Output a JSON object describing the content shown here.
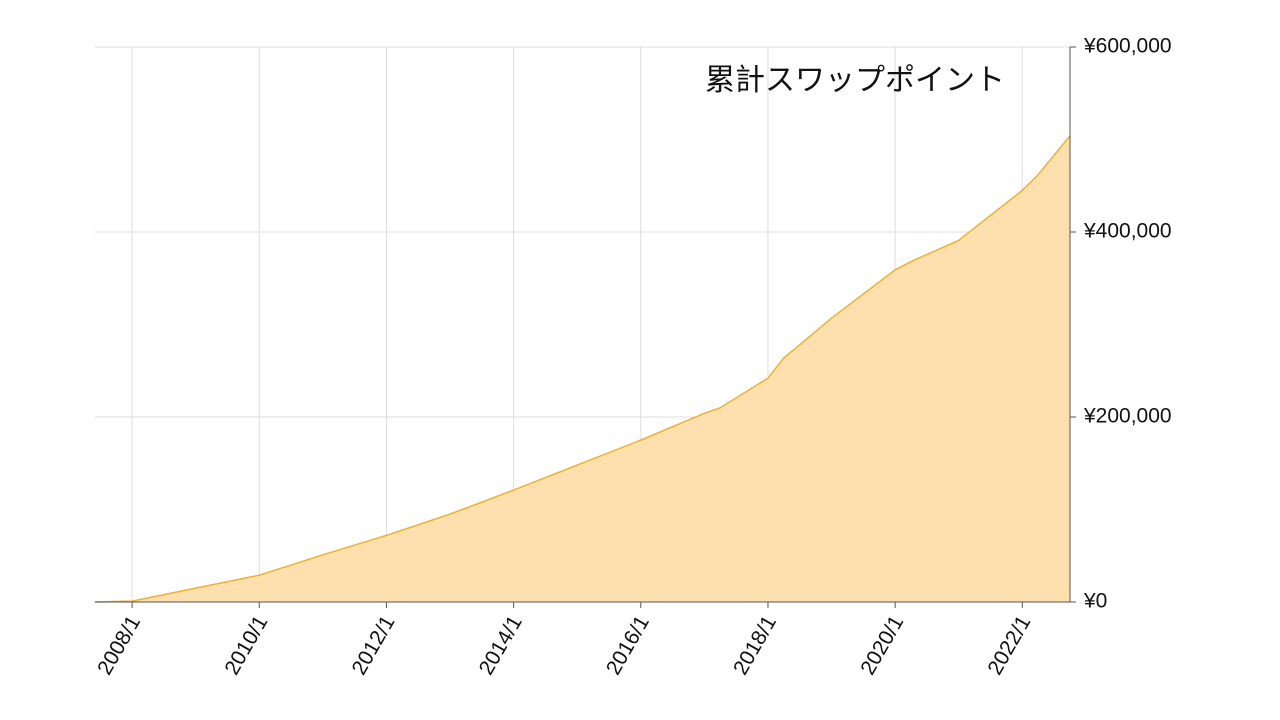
{
  "chart_data": {
    "type": "area",
    "title": "累計スワップポイント",
    "x": [
      "2007/6",
      "2008/1",
      "2009/1",
      "2010/1",
      "2011/1",
      "2012/1",
      "2013/1",
      "2014/1",
      "2015/1",
      "2016/1",
      "2017/1",
      "2017/4",
      "2018/1",
      "2018/4",
      "2018/7",
      "2019/1",
      "2020/1",
      "2020/4",
      "2021/1",
      "2022/1",
      "2022/4",
      "2022/10"
    ],
    "values": [
      0,
      1000,
      15000,
      29000,
      51000,
      72000,
      95000,
      121000,
      148000,
      175000,
      204000,
      210000,
      242000,
      264000,
      278000,
      307000,
      359000,
      368000,
      391000,
      445000,
      462000,
      504000
    ],
    "color": "#f0b030",
    "fill": "#fde0ae",
    "xlim": [
      "2007/6",
      "2022/10"
    ],
    "xticks": [
      "2008/1",
      "2010/1",
      "2012/1",
      "2014/1",
      "2016/1",
      "2018/1",
      "2020/1",
      "2022/1"
    ],
    "ylim": [
      0,
      600000
    ],
    "yticks": [
      {
        "value": 0,
        "label": "¥0"
      },
      {
        "value": 200000,
        "label": "¥200,000"
      },
      {
        "value": 400000,
        "label": "¥400,000"
      },
      {
        "value": 600000,
        "label": "¥600,000"
      }
    ],
    "grid": true,
    "y_axis_side": "right"
  }
}
